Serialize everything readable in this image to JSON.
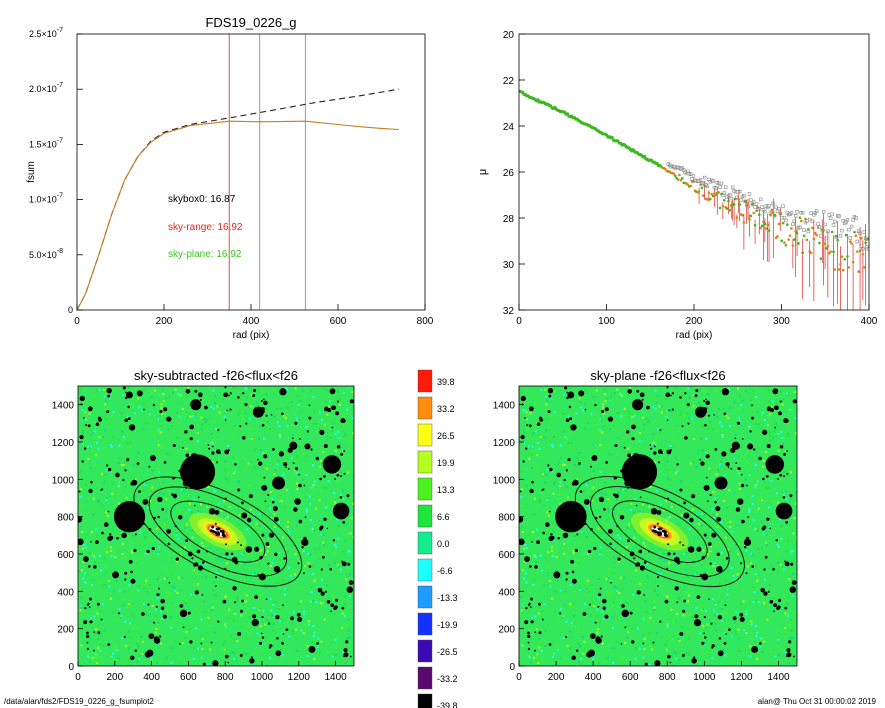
{
  "footer": {
    "path": "/data/alan/fds2/FDS19_0226_g_fsumplot2",
    "stamp": "alan@  Thu Oct 31 00:00:02 2019"
  },
  "chart_data": [
    {
      "type": "line",
      "title": "FDS19_0226_g",
      "xlabel": "rad (pix)",
      "ylabel": "fsum",
      "xlim": [
        0,
        800
      ],
      "ylim": [
        0,
        2.5e-07
      ],
      "xticks": [
        0,
        200,
        400,
        600,
        800
      ],
      "yticks": [
        {
          "value": 0,
          "label": "0"
        },
        {
          "value": 5e-08,
          "label": "5.0×10",
          "exp": "-8"
        },
        {
          "value": 1e-07,
          "label": "1.0×10",
          "exp": "-7"
        },
        {
          "value": 1.5e-07,
          "label": "1.5×10",
          "exp": "-7"
        },
        {
          "value": 2e-07,
          "label": "2.0×10",
          "exp": "-7"
        },
        {
          "value": 2.5e-07,
          "label": "2.5×10",
          "exp": "-7"
        }
      ],
      "vlines": [
        {
          "x": 350,
          "color": "#d9534f"
        },
        {
          "x": 420,
          "color": "#999999"
        },
        {
          "x": 525,
          "color": "#999999"
        }
      ],
      "annotations": [
        {
          "text": "skybox0: 16.87",
          "color": "#000000"
        },
        {
          "text": "sky-range: 16.92",
          "color": "#e0281e"
        },
        {
          "text": "sky-plane: 16.92",
          "color": "#3cc81e"
        }
      ],
      "series": [
        {
          "style": "dashed",
          "color": "#222222",
          "x": [
            0,
            20,
            50,
            80,
            110,
            140,
            170,
            200,
            260,
            350,
            450,
            550,
            650,
            740
          ],
          "y": [
            0,
            1.5e-08,
            5e-08,
            8.7e-08,
            1.18e-07,
            1.39e-07,
            1.53e-07,
            1.61e-07,
            1.68e-07,
            1.74e-07,
            1.81e-07,
            1.88e-07,
            1.94e-07,
            2e-07
          ]
        },
        {
          "style": "solid",
          "color": "#c08020",
          "x": [
            0,
            20,
            50,
            80,
            110,
            140,
            170,
            200,
            260,
            350,
            420,
            525,
            600,
            650,
            700,
            740
          ],
          "y": [
            0,
            1.5e-08,
            5e-08,
            8.7e-08,
            1.18e-07,
            1.39e-07,
            1.52e-07,
            1.6e-07,
            1.67e-07,
            1.71e-07,
            1.705e-07,
            1.71e-07,
            1.68e-07,
            1.66e-07,
            1.645e-07,
            1.635e-07
          ]
        }
      ]
    },
    {
      "type": "scatter",
      "xlabel": "rad (pix)",
      "ylabel": "μ",
      "xlim": [
        0,
        400
      ],
      "ylim": [
        32,
        20
      ],
      "xticks": [
        0,
        100,
        200,
        300,
        400
      ],
      "yticks": [
        20,
        22,
        24,
        26,
        28,
        30,
        32
      ],
      "profile": {
        "x": [
          0,
          50,
          100,
          150,
          200,
          250,
          300,
          350,
          400
        ],
        "y": [
          22.5,
          23.4,
          24.4,
          25.5,
          26.6,
          27.6,
          28.4,
          29.2,
          29.8
        ]
      },
      "colors": {
        "green": "#3cb81e",
        "orange": "#e0801e",
        "red": "#e0281e",
        "grey": "#888888"
      }
    },
    {
      "type": "heatmap",
      "title": "sky-subtracted -f26<flux<f26",
      "xlim": [
        0,
        1500
      ],
      "ylim": [
        0,
        1500
      ],
      "xticks": [
        0,
        200,
        400,
        600,
        800,
        1000,
        1200,
        1400
      ],
      "yticks": [
        0,
        200,
        400,
        600,
        800,
        1000,
        1200,
        1400
      ]
    },
    {
      "type": "heatmap",
      "title": "sky-plane -f26<flux<f26",
      "xlim": [
        0,
        1500
      ],
      "ylim": [
        0,
        1500
      ],
      "xticks": [
        0,
        200,
        400,
        600,
        800,
        1000,
        1200,
        1400
      ],
      "yticks": [
        0,
        200,
        400,
        600,
        800,
        1000,
        1200,
        1400
      ]
    }
  ],
  "colorbar": {
    "labels": [
      "39.8",
      "33.2",
      "26.5",
      "19.9",
      "13.3",
      "6.6",
      "0.0",
      "-6.6",
      "-13.3",
      "-19.9",
      "-26.5",
      "-33.2",
      "-39.8"
    ],
    "colors": [
      "#ff1a0a",
      "#ff8c0a",
      "#ffff14",
      "#b4ff1e",
      "#4cf21e",
      "#1ee63c",
      "#14eb8c",
      "#1effff",
      "#1e9cff",
      "#1432ff",
      "#3c0ab4",
      "#5a0a6e",
      "#000000"
    ]
  },
  "image_features": {
    "galaxy_center": {
      "x": 760,
      "y": 720
    },
    "bright_stars": [
      {
        "x": 650,
        "y": 1040,
        "r": 95
      },
      {
        "x": 280,
        "y": 800,
        "r": 85
      },
      {
        "x": 1380,
        "y": 1080,
        "r": 50
      },
      {
        "x": 1430,
        "y": 830,
        "r": 45
      },
      {
        "x": 640,
        "y": 1400,
        "r": 30
      },
      {
        "x": 1090,
        "y": 980,
        "r": 35
      },
      {
        "x": 980,
        "y": 1360,
        "r": 30
      },
      {
        "x": 1170,
        "y": 1180,
        "r": 22
      }
    ],
    "ellipses": [
      {
        "a": 280,
        "b": 120,
        "angle": -27
      },
      {
        "a": 410,
        "b": 175,
        "angle": -27
      },
      {
        "a": 500,
        "b": 215,
        "angle": -27
      }
    ]
  }
}
